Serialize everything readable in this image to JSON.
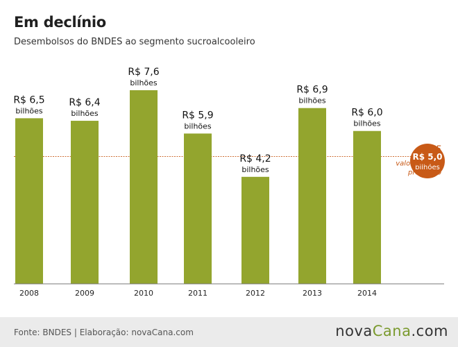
{
  "header": {
    "title": "Em declínio",
    "subtitle": "Desembolsos do BNDES ao segmento sucroalcooleiro"
  },
  "chart_data": {
    "type": "bar",
    "categories": [
      "2008",
      "2009",
      "2010",
      "2011",
      "2012",
      "2013",
      "2014"
    ],
    "values": [
      6.5,
      6.4,
      7.6,
      5.9,
      4.2,
      6.9,
      6.0
    ],
    "value_labels": [
      "R$ 6,5",
      "R$ 6,4",
      "R$ 7,6",
      "R$ 5,9",
      "R$ 4,2",
      "R$ 6,9",
      "R$ 6,0"
    ],
    "unit_label": "bilhões",
    "ylim": [
      0,
      7.6
    ],
    "bar_color": "#93a52e",
    "reference": {
      "year": "2015",
      "value": 5.0,
      "value_label": "R$ 5,0",
      "unit_label": "bilhões",
      "note_line1": "valor mínimo",
      "note_line2": "projetado",
      "color": "#c85a17"
    }
  },
  "footer": {
    "source": "Fonte: BNDES | Elaboração: novaCana.com",
    "logo_part1": "nova",
    "logo_part2": "Cana",
    "logo_part3": ".com",
    "logo_accent_color": "#7a9a2e"
  }
}
